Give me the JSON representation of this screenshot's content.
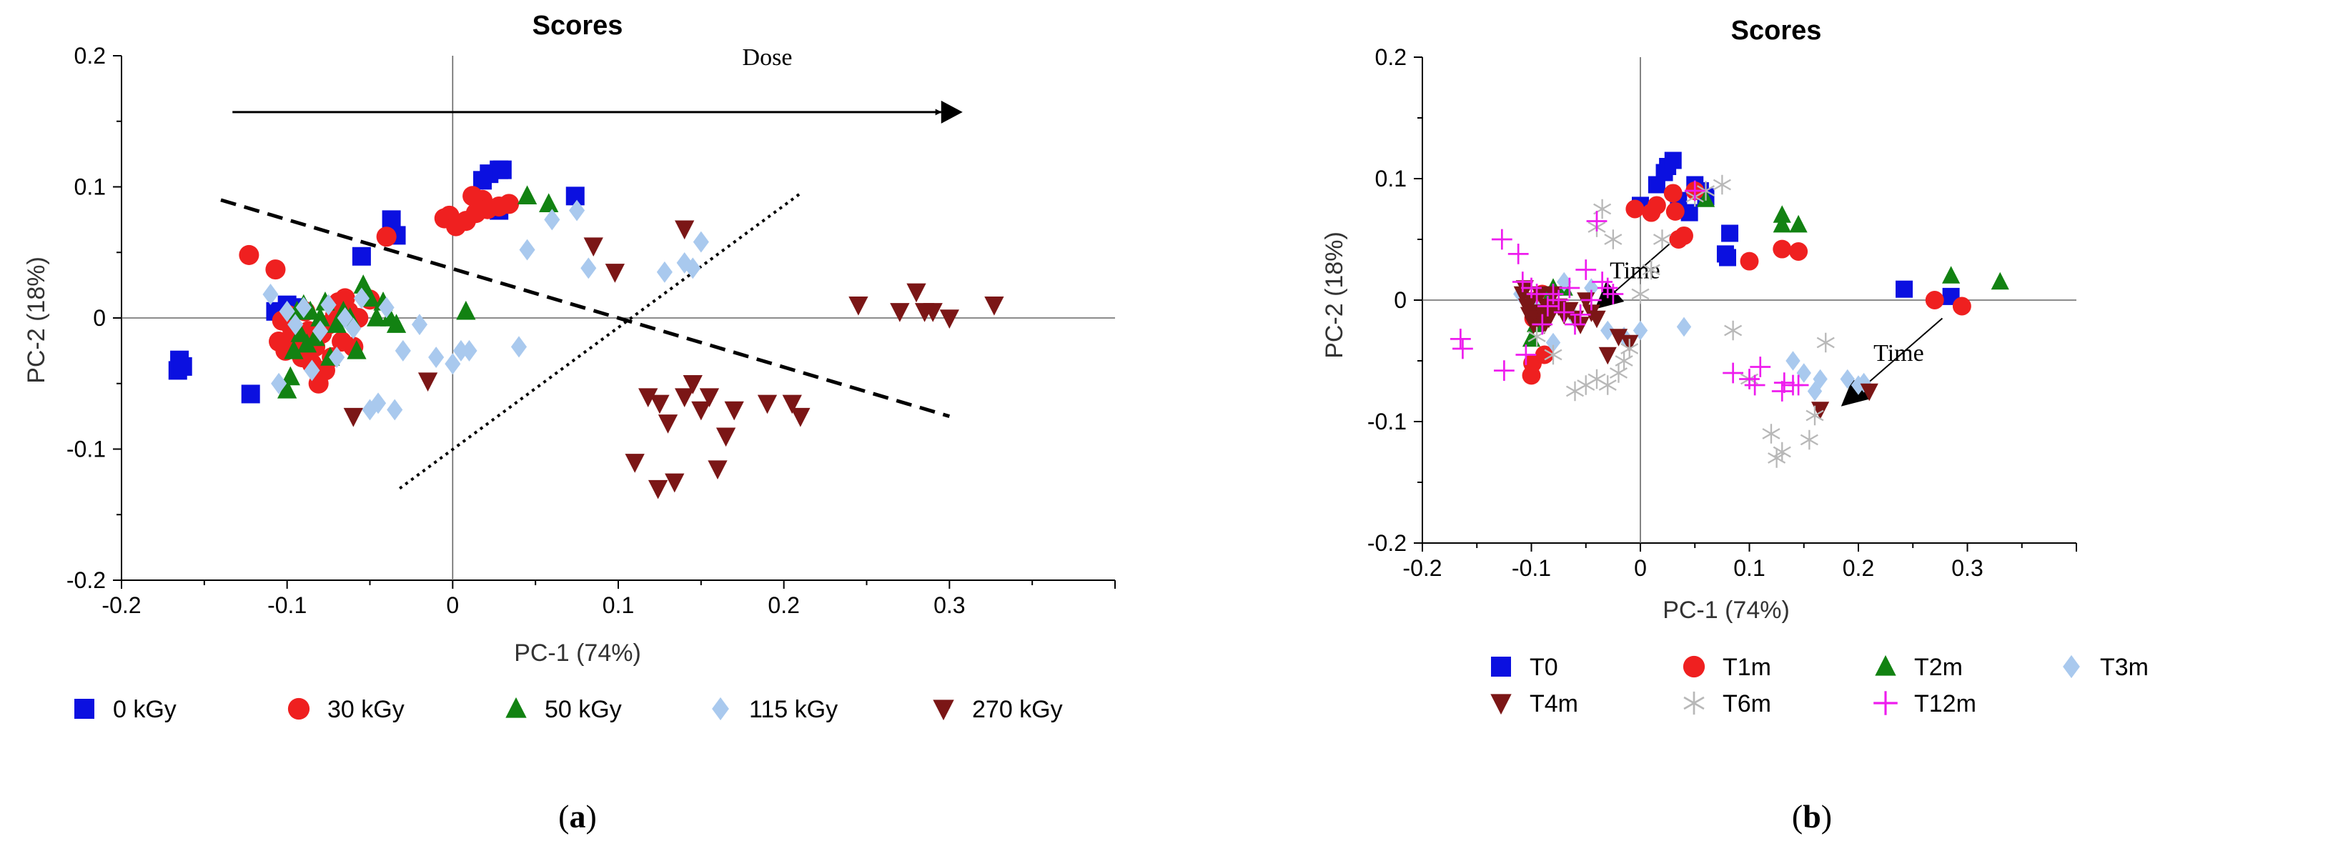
{
  "chart_data": [
    {
      "type": "scatter",
      "title": "Scores",
      "xlabel": "PC-1 (74%)",
      "ylabel": "PC-2 (18%)",
      "xlim": [
        -0.2,
        0.4
      ],
      "ylim": [
        -0.2,
        0.2
      ],
      "xticks": [
        -0.2,
        -0.1,
        0,
        0.1,
        0.2,
        0.3
      ],
      "yticks": [
        -0.2,
        -0.1,
        0,
        0.1,
        0.2
      ],
      "xtick_labels": [
        "-0.2",
        "-0.1",
        "0",
        "0.1",
        "0.2",
        "0.3"
      ],
      "ytick_labels": [
        "-0.2",
        "-0.1",
        "0",
        "0.1",
        "0.2"
      ],
      "grid": false,
      "legend_position": "bottom",
      "caption": "a",
      "annotations": [
        {
          "text": "Dose",
          "x": 0.19,
          "y": 0.193
        },
        {
          "type": "arrow",
          "x1": -0.133,
          "y1": 0.157,
          "x2": 0.295,
          "y2": 0.157
        },
        {
          "type": "line",
          "style": "dashed",
          "x1": -0.14,
          "y1": 0.09,
          "x2": 0.3,
          "y2": -0.075
        },
        {
          "type": "line",
          "style": "dotted",
          "x1": -0.032,
          "y1": -0.13,
          "x2": 0.21,
          "y2": 0.095
        }
      ],
      "series": [
        {
          "name": "0 kGy",
          "marker": "square",
          "color": "#0b10e0",
          "x": [
            -0.165,
            -0.166,
            -0.163,
            -0.122,
            -0.107,
            -0.1,
            -0.096,
            -0.055,
            -0.037,
            -0.034,
            0.018,
            0.022,
            0.028,
            0.03,
            0.028,
            0.074
          ],
          "y": [
            -0.032,
            -0.04,
            -0.037,
            -0.058,
            0.005,
            0.01,
            0.008,
            0.047,
            0.075,
            0.063,
            0.105,
            0.11,
            0.113,
            0.113,
            0.082,
            0.093
          ]
        },
        {
          "name": "30 kGy",
          "marker": "circle",
          "color": "#ef2020",
          "x": [
            -0.123,
            -0.107,
            -0.105,
            -0.103,
            -0.101,
            -0.099,
            -0.097,
            -0.095,
            -0.093,
            -0.091,
            -0.089,
            -0.087,
            -0.085,
            -0.083,
            -0.081,
            -0.079,
            -0.077,
            -0.075,
            -0.073,
            -0.071,
            -0.069,
            -0.067,
            -0.065,
            -0.063,
            -0.06,
            -0.057,
            -0.05,
            -0.04,
            -0.005,
            -0.002,
            0.002,
            0.008,
            0.012,
            0.014,
            0.018,
            0.021,
            0.028,
            0.034
          ],
          "y": [
            0.048,
            0.037,
            -0.018,
            -0.002,
            -0.025,
            0.002,
            -0.008,
            -0.015,
            -0.02,
            -0.03,
            0.005,
            -0.01,
            -0.035,
            -0.022,
            -0.05,
            -0.012,
            -0.04,
            -0.005,
            -0.03,
            0.002,
            0.012,
            -0.018,
            0.015,
            0.005,
            -0.022,
            0.0,
            0.014,
            0.062,
            0.076,
            0.078,
            0.07,
            0.074,
            0.093,
            0.08,
            0.09,
            0.083,
            0.085,
            0.087
          ]
        },
        {
          "name": "50 kGy",
          "marker": "triangle-up",
          "color": "#128212",
          "x": [
            -0.1,
            -0.098,
            -0.096,
            -0.094,
            -0.092,
            -0.09,
            -0.088,
            -0.086,
            -0.083,
            -0.08,
            -0.077,
            -0.074,
            -0.07,
            -0.066,
            -0.062,
            -0.058,
            -0.054,
            -0.05,
            -0.046,
            -0.042,
            -0.038,
            -0.034,
            0.008,
            0.045,
            0.058
          ],
          "y": [
            -0.055,
            -0.045,
            -0.025,
            0.005,
            -0.012,
            0.01,
            -0.02,
            0.005,
            -0.015,
            0.0,
            0.012,
            -0.03,
            -0.005,
            0.005,
            0.0,
            -0.025,
            0.025,
            0.015,
            0.0,
            0.012,
            0.0,
            -0.005,
            0.005,
            0.093,
            0.087
          ]
        },
        {
          "name": "115 kGy",
          "marker": "diamond",
          "color": "#a9c9ee",
          "x": [
            -0.11,
            -0.105,
            -0.1,
            -0.095,
            -0.09,
            -0.085,
            -0.08,
            -0.075,
            -0.07,
            -0.065,
            -0.06,
            -0.055,
            -0.05,
            -0.045,
            -0.04,
            -0.035,
            -0.03,
            -0.02,
            -0.01,
            0.0,
            0.005,
            0.01,
            0.04,
            0.045,
            0.06,
            0.075,
            0.082,
            0.128,
            0.14,
            0.145,
            0.15
          ],
          "y": [
            0.018,
            -0.05,
            0.005,
            -0.005,
            0.008,
            -0.04,
            -0.01,
            0.01,
            -0.03,
            0.0,
            -0.008,
            0.015,
            -0.07,
            -0.065,
            0.008,
            -0.07,
            -0.025,
            -0.005,
            -0.03,
            -0.035,
            -0.025,
            -0.025,
            -0.022,
            0.052,
            0.075,
            0.082,
            0.038,
            0.035,
            0.042,
            0.038,
            0.058
          ]
        },
        {
          "name": "270 kGy",
          "marker": "triangle-down",
          "color": "#7b1616",
          "x": [
            -0.06,
            -0.015,
            0.085,
            0.098,
            0.118,
            0.124,
            0.134,
            0.14,
            0.145,
            0.15,
            0.155,
            0.16,
            0.165,
            0.17,
            0.19,
            0.205,
            0.21,
            0.245,
            0.27,
            0.28,
            0.285,
            0.29,
            0.3,
            0.327,
            0.14,
            0.125,
            0.13,
            0.11
          ],
          "y": [
            -0.075,
            -0.048,
            0.055,
            0.035,
            -0.06,
            -0.13,
            -0.125,
            -0.06,
            -0.05,
            -0.07,
            -0.06,
            -0.115,
            -0.09,
            -0.07,
            -0.065,
            -0.065,
            -0.075,
            0.01,
            0.005,
            0.02,
            0.005,
            0.005,
            0.0,
            0.01,
            0.068,
            -0.065,
            -0.08,
            -0.11
          ]
        }
      ]
    },
    {
      "type": "scatter",
      "title": "Scores",
      "xlabel": "PC-1 (74%)",
      "ylabel": "PC-2 (18%)",
      "xlim": [
        -0.2,
        0.4
      ],
      "ylim": [
        -0.2,
        0.2
      ],
      "xticks": [
        -0.2,
        -0.1,
        0,
        0.1,
        0.2,
        0.3
      ],
      "yticks": [
        -0.2,
        -0.1,
        0,
        0.1,
        0.2
      ],
      "xtick_labels": [
        "-0.2",
        "-0.1",
        "0",
        "0.1",
        "0.2",
        "0.3"
      ],
      "ytick_labels": [
        "-0.2",
        "-0.1",
        "0",
        "0.1",
        "0.2"
      ],
      "grid": false,
      "legend_position": "bottom",
      "caption": "b",
      "annotations": [
        {
          "text": "Time",
          "x": -0.005,
          "y": 0.018
        },
        {
          "text": "Time",
          "x": 0.237,
          "y": -0.05
        },
        {
          "type": "arrow",
          "x1": 0.043,
          "y1": 0.059,
          "x2": -0.04,
          "y2": -0.006
        },
        {
          "type": "arrow",
          "x1": 0.277,
          "y1": -0.015,
          "x2": 0.186,
          "y2": -0.086
        }
      ],
      "series": [
        {
          "name": "T0",
          "marker": "square",
          "color": "#0b10e0",
          "x": [
            0.0,
            0.015,
            0.022,
            0.025,
            0.03,
            0.035,
            0.045,
            0.05,
            0.055,
            0.06,
            0.078,
            0.08,
            0.082,
            0.242,
            0.285
          ],
          "y": [
            0.078,
            0.095,
            0.105,
            0.11,
            0.115,
            0.082,
            0.072,
            0.095,
            0.09,
            0.085,
            0.038,
            0.035,
            0.055,
            0.009,
            0.003
          ]
        },
        {
          "name": "T1m",
          "marker": "circle",
          "color": "#ef2020",
          "x": [
            -0.1,
            -0.099,
            -0.098,
            -0.095,
            -0.09,
            -0.088,
            -0.086,
            -0.084,
            -0.005,
            0.01,
            0.015,
            0.032,
            0.035,
            0.04,
            0.1,
            0.13,
            0.145,
            0.27,
            0.295,
            0.05,
            0.03
          ],
          "y": [
            -0.062,
            -0.052,
            -0.015,
            -0.01,
            0.005,
            -0.045,
            -0.008,
            -0.005,
            0.075,
            0.072,
            0.078,
            0.073,
            0.05,
            0.053,
            0.032,
            0.042,
            0.04,
            0.0,
            -0.005,
            0.09,
            0.088
          ]
        },
        {
          "name": "T2m",
          "marker": "triangle-up",
          "color": "#128212",
          "x": [
            -0.1,
            -0.096,
            -0.09,
            -0.085,
            -0.08,
            -0.07,
            0.06,
            0.13,
            0.145,
            0.285,
            0.33,
            0.13
          ],
          "y": [
            -0.032,
            -0.02,
            -0.015,
            0.0,
            0.01,
            0.01,
            0.083,
            0.07,
            0.062,
            0.02,
            0.015,
            0.062
          ]
        },
        {
          "name": "T3m",
          "marker": "diamond",
          "color": "#a9c9ee",
          "x": [
            -0.11,
            -0.1,
            -0.09,
            -0.08,
            -0.07,
            -0.06,
            -0.045,
            -0.03,
            -0.015,
            0.0,
            0.04,
            0.14,
            0.15,
            0.16,
            0.19,
            0.2,
            0.205,
            0.165
          ],
          "y": [
            0.005,
            -0.005,
            -0.005,
            -0.035,
            0.015,
            -0.015,
            0.01,
            -0.025,
            -0.03,
            -0.025,
            -0.022,
            -0.05,
            -0.06,
            -0.075,
            -0.065,
            -0.07,
            -0.068,
            -0.065
          ]
        },
        {
          "name": "T4m",
          "marker": "triangle-down",
          "color": "#7b1616",
          "x": [
            -0.108,
            -0.106,
            -0.104,
            -0.102,
            -0.1,
            -0.098,
            -0.096,
            -0.094,
            -0.092,
            -0.09,
            -0.088,
            -0.086,
            -0.084,
            -0.082,
            -0.08,
            -0.075,
            -0.07,
            -0.065,
            -0.06,
            -0.055,
            -0.05,
            -0.045,
            -0.04,
            -0.03,
            -0.02,
            -0.01,
            0.165,
            0.21
          ],
          "y": [
            0.005,
            0.01,
            -0.005,
            -0.012,
            0.0,
            -0.02,
            -0.01,
            -0.015,
            0.005,
            -0.01,
            -0.02,
            -0.005,
            -0.015,
            -0.01,
            0.005,
            -0.005,
            -0.012,
            -0.008,
            -0.015,
            -0.02,
            0.0,
            -0.01,
            -0.015,
            -0.045,
            -0.03,
            -0.035,
            -0.09,
            -0.075
          ]
        },
        {
          "name": "T6m",
          "marker": "asterisk",
          "color": "#b8b8b8",
          "x": [
            -0.095,
            -0.08,
            -0.06,
            -0.05,
            -0.04,
            -0.035,
            -0.03,
            -0.025,
            -0.02,
            -0.015,
            -0.01,
            0.0,
            0.01,
            0.02,
            0.05,
            0.06,
            0.075,
            0.085,
            0.1,
            0.12,
            0.125,
            0.13,
            0.155,
            0.16,
            0.17,
            -0.04
          ],
          "y": [
            -0.03,
            -0.045,
            -0.075,
            -0.07,
            0.06,
            0.075,
            -0.07,
            0.05,
            -0.06,
            -0.05,
            -0.04,
            0.005,
            0.025,
            0.05,
            0.085,
            0.09,
            0.095,
            -0.025,
            -0.065,
            -0.11,
            -0.13,
            -0.125,
            -0.115,
            -0.095,
            -0.035,
            -0.065
          ]
        },
        {
          "name": "T12m",
          "marker": "plus",
          "color": "#ee1cee",
          "x": [
            -0.165,
            -0.163,
            -0.127,
            -0.125,
            -0.112,
            -0.108,
            -0.105,
            -0.1,
            -0.095,
            -0.09,
            -0.085,
            -0.08,
            -0.075,
            -0.07,
            -0.065,
            -0.06,
            -0.055,
            -0.05,
            -0.045,
            -0.04,
            -0.035,
            -0.03,
            -0.025,
            0.05,
            0.085,
            0.1,
            0.105,
            0.11,
            0.13,
            0.132,
            0.14,
            0.145
          ],
          "y": [
            -0.032,
            -0.04,
            0.05,
            -0.058,
            0.038,
            0.015,
            -0.045,
            0.01,
            0.005,
            -0.02,
            -0.005,
            0.005,
            0.0,
            -0.01,
            0.01,
            -0.02,
            -0.012,
            0.025,
            0.0,
            0.065,
            0.015,
            0.01,
            0.005,
            0.09,
            -0.06,
            -0.065,
            -0.07,
            -0.055,
            -0.075,
            -0.068,
            -0.07,
            -0.07
          ]
        }
      ]
    }
  ]
}
